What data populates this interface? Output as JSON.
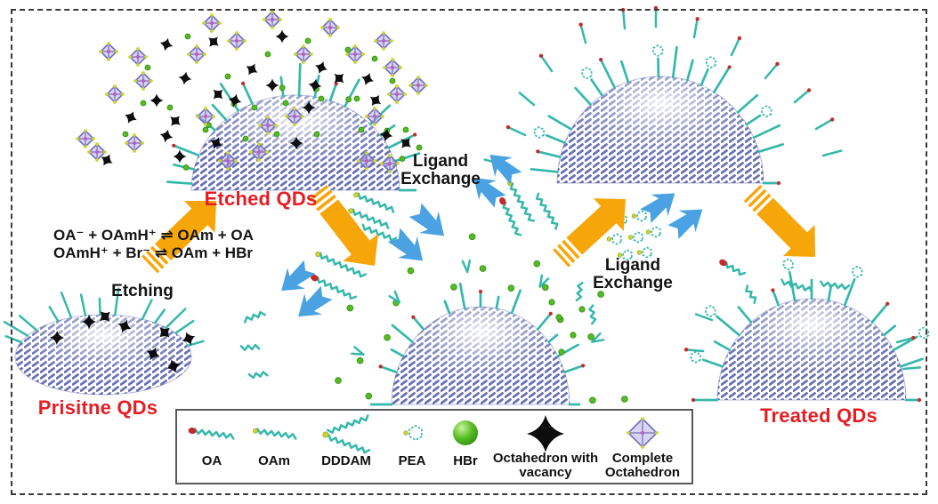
{
  "colors": {
    "qd_blue": "#6971B5",
    "ligand_teal": "#35B8AC",
    "hbr_green": "#54BB22",
    "hbr_green_dark": "#2F8C12",
    "oa_red": "#C42A28",
    "head_yellow": "#CBD829",
    "octa_purple": "#756DC0",
    "octa_fill": "#B9B3E2",
    "octa_center": "#BC5FBF",
    "arrow_orange": "#F7A60A",
    "arrow_blue": "#4AA2E3",
    "label_red": "#E41E25",
    "text_black": "#141414"
  },
  "qd_labels": {
    "pristine": "Prisitne QDs",
    "etched": "Etched QDs",
    "treated": "Treated QDs"
  },
  "process_labels": {
    "etching": "Etching",
    "ligand_exchange_left": "Ligand Exchange",
    "ligand_exchange_right": "Ligand Exchange"
  },
  "equations": {
    "line1": "OA⁻ + OAmH⁺ ⇌ OAm + OA",
    "line2": "OAmH⁺ + Br⁻ ⇌ OAm + HBr"
  },
  "legend": {
    "items": [
      {
        "label": "OA",
        "icon": "oa-ligand-icon"
      },
      {
        "label": "OAm",
        "icon": "oam-ligand-icon"
      },
      {
        "label": "DDDAM",
        "icon": "dddam-ligand-icon"
      },
      {
        "label": "PEA",
        "icon": "pea-ligand-icon"
      },
      {
        "label": "HBr",
        "icon": "hbr-icon"
      },
      {
        "label": "Octahedron with vacancy",
        "icon": "octahedron-with-vacancy-icon"
      },
      {
        "label": "Complete Octahedron",
        "icon": "complete-octahedron-icon"
      }
    ]
  }
}
